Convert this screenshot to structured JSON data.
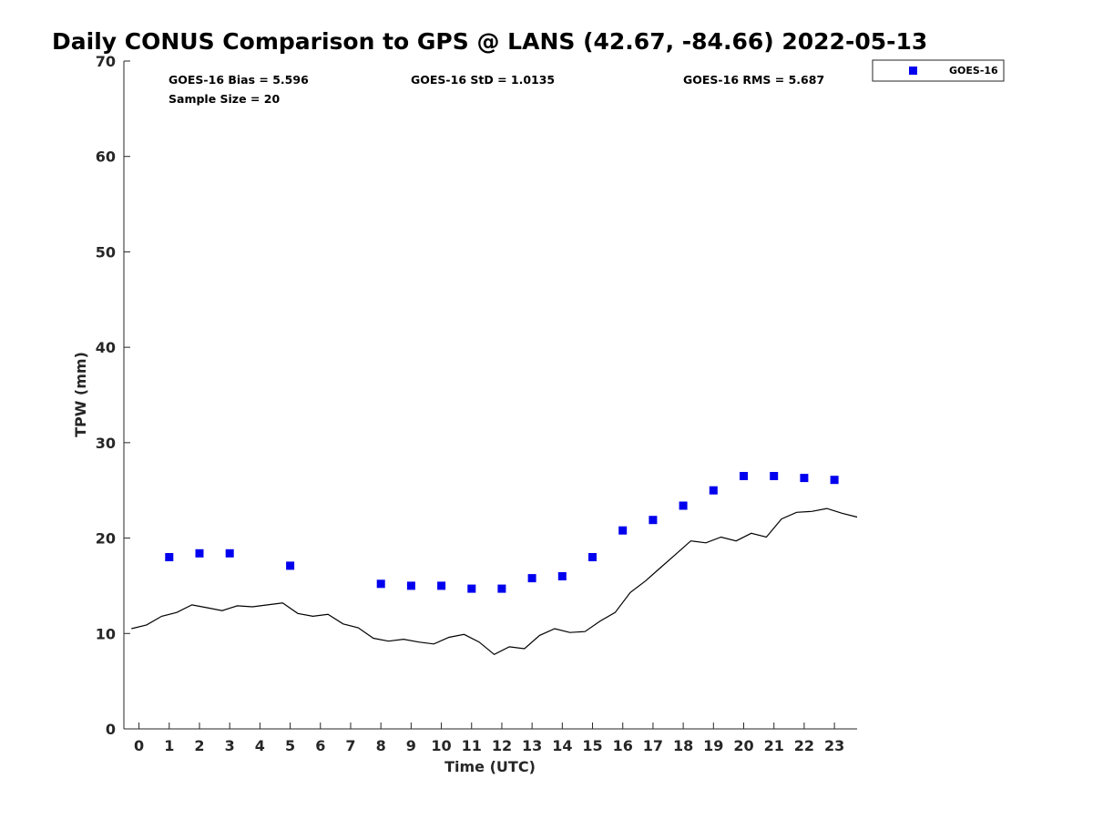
{
  "chart_data": {
    "type": "scatter",
    "title": "Daily CONUS Comparison to GPS @ LANS (42.67, -84.66) 2022-05-13",
    "xlabel": "Time (UTC)",
    "ylabel": "TPW (mm)",
    "xlim": [
      -0.5,
      23.75
    ],
    "ylim": [
      0,
      70
    ],
    "x_ticks": [
      0,
      1,
      2,
      3,
      4,
      5,
      6,
      7,
      8,
      9,
      10,
      11,
      12,
      13,
      14,
      15,
      16,
      17,
      18,
      19,
      20,
      21,
      22,
      23
    ],
    "y_ticks": [
      0,
      10,
      20,
      30,
      40,
      50,
      60,
      70
    ],
    "grid": false,
    "legend_position": "top-right, outside plot",
    "stats": {
      "bias": "GOES-16 Bias = 5.596",
      "std": "GOES-16 StD = 1.0135",
      "rms": "GOES-16 RMS = 5.687",
      "sample": "Sample Size = 20"
    },
    "series": [
      {
        "name": "GOES-16",
        "kind": "scatter",
        "marker": "square",
        "color": "#0000ee",
        "x": [
          1,
          2,
          3,
          5,
          8,
          9,
          10,
          11,
          12,
          13,
          14,
          15,
          16,
          17,
          18,
          19,
          20,
          21,
          22,
          23
        ],
        "y": [
          18.0,
          18.4,
          18.4,
          17.1,
          15.2,
          15.0,
          15.0,
          14.7,
          14.7,
          15.8,
          16.0,
          18.0,
          20.8,
          21.9,
          23.4,
          25.0,
          26.5,
          26.5,
          26.3,
          26.1
        ]
      },
      {
        "kind": "line",
        "color": "#000000",
        "x": [
          -0.25,
          0.25,
          0.75,
          1.25,
          1.75,
          2.25,
          2.75,
          3.25,
          3.75,
          4.25,
          4.75,
          5.25,
          5.75,
          6.25,
          6.75,
          7.25,
          7.75,
          8.25,
          8.75,
          9.25,
          9.75,
          10.25,
          10.75,
          11.25,
          11.75,
          12.25,
          12.75,
          13.25,
          13.75,
          14.25,
          14.75,
          15.25,
          15.75,
          16.25,
          16.75,
          17.25,
          17.75,
          18.25,
          18.75,
          19.25,
          19.75,
          20.25,
          20.75,
          21.25,
          21.75,
          22.25,
          22.75,
          23.25,
          23.75
        ],
        "y": [
          10.5,
          10.9,
          11.8,
          12.2,
          13.0,
          12.7,
          12.4,
          12.9,
          12.8,
          13.0,
          13.2,
          12.1,
          11.8,
          12.0,
          11.0,
          10.6,
          9.5,
          9.2,
          9.4,
          9.1,
          8.9,
          9.6,
          9.9,
          9.1,
          7.8,
          8.6,
          8.4,
          9.8,
          10.5,
          10.1,
          10.2,
          11.3,
          12.2,
          14.3,
          15.5,
          16.9,
          18.3,
          19.7,
          19.5,
          20.1,
          19.7,
          20.5,
          20.1,
          22.0,
          22.7,
          22.8,
          23.1,
          22.6,
          22.2
        ]
      }
    ]
  }
}
